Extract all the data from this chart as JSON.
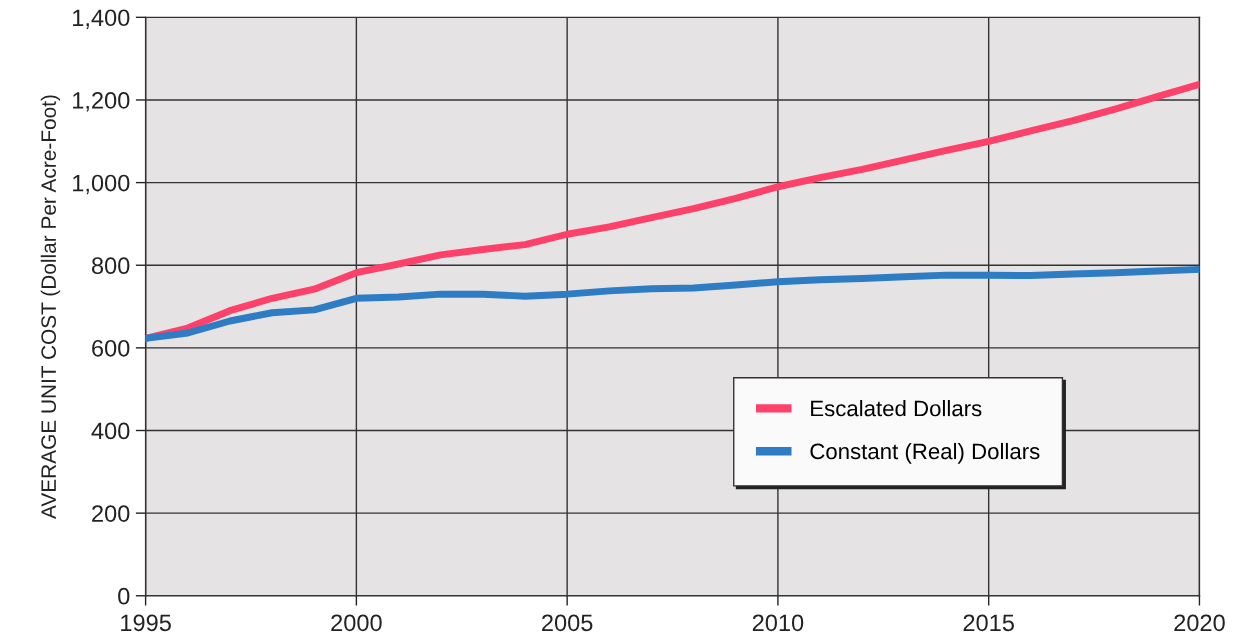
{
  "chart_data": {
    "type": "line",
    "ylabel": "AVERAGE UNIT COST (Dollar Per Acre-Foot)",
    "x": [
      1995,
      1996,
      1997,
      1998,
      1999,
      2000,
      2001,
      2002,
      2003,
      2004,
      2005,
      2006,
      2007,
      2008,
      2009,
      2010,
      2011,
      2012,
      2013,
      2014,
      2015,
      2016,
      2017,
      2018,
      2019,
      2020
    ],
    "series": [
      {
        "name": "Escalated Dollars",
        "color": "#fd416b",
        "values": [
          623,
          648,
          690,
          720,
          742,
          782,
          803,
          825,
          838,
          850,
          875,
          893,
          915,
          937,
          962,
          990,
          1012,
          1032,
          1055,
          1078,
          1100,
          1125,
          1150,
          1178,
          1208,
          1238
        ]
      },
      {
        "name": "Constant (Real) Dollars",
        "color": "#2d7cc4",
        "values": [
          623,
          636,
          665,
          685,
          692,
          720,
          723,
          730,
          730,
          725,
          730,
          738,
          743,
          745,
          752,
          760,
          765,
          768,
          772,
          776,
          776,
          775,
          779,
          782,
          786,
          790
        ]
      }
    ],
    "xlim": [
      1995,
      2020
    ],
    "xticks": [
      1995,
      2000,
      2005,
      2010,
      2015,
      2020
    ],
    "ylim": [
      0,
      1400
    ],
    "yticks": [
      0,
      200,
      400,
      600,
      800,
      {
        "value": 1000,
        "label": "1,000"
      },
      {
        "value": 1200,
        "label": "1,200"
      },
      {
        "value": 1400,
        "label": "1,400"
      }
    ],
    "grid": true,
    "legend": "lower right"
  }
}
